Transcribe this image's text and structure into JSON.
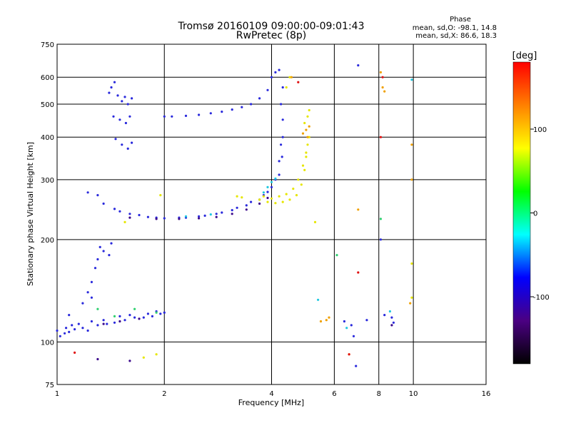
{
  "chart_data": {
    "type": "scatter",
    "title": "Tromsø 20160109 09:00:00-09:01:43",
    "subtitle": "RwPretec (8p)",
    "xlabel": "Frequency [MHz]",
    "ylabel": "Stationary phase Virtual Height [km]",
    "x_scale": "log",
    "y_scale": "log",
    "xlim": [
      1,
      16
    ],
    "ylim": [
      75,
      750
    ],
    "x_ticks": [
      1,
      2,
      4,
      6,
      8,
      10,
      16
    ],
    "y_ticks": [
      75,
      100,
      200,
      300,
      400,
      500,
      600,
      750
    ],
    "grid": true,
    "stats": {
      "heading": "Phase",
      "line1": "mean, sd,O: -98.1, 14.8",
      "line2": "mean, sd,X: 86.6, 18.3"
    },
    "colorbar": {
      "label": "[deg]",
      "range": [
        -180,
        180
      ],
      "ticks": [
        100,
        0,
        -100
      ],
      "colors": [
        "#000000",
        "#4b0082",
        "#0000ff",
        "#00ffff",
        "#00ff00",
        "#ffff00",
        "#ff8000",
        "#ff0000"
      ]
    },
    "series": [
      {
        "color": "#2a2adc",
        "points": [
          [
            1.4,
            540
          ],
          [
            1.42,
            560
          ],
          [
            1.45,
            580
          ],
          [
            1.48,
            530
          ],
          [
            1.52,
            510
          ],
          [
            1.55,
            525
          ],
          [
            1.58,
            500
          ],
          [
            1.62,
            520
          ],
          [
            1.44,
            460
          ],
          [
            1.5,
            450
          ],
          [
            1.56,
            440
          ],
          [
            1.6,
            460
          ],
          [
            1.46,
            395
          ],
          [
            1.52,
            380
          ],
          [
            1.58,
            370
          ],
          [
            1.62,
            385
          ],
          [
            2.0,
            460
          ],
          [
            2.1,
            460
          ],
          [
            2.3,
            462
          ],
          [
            2.5,
            465
          ],
          [
            2.7,
            470
          ],
          [
            2.9,
            475
          ],
          [
            3.1,
            482
          ],
          [
            3.3,
            490
          ],
          [
            3.5,
            500
          ],
          [
            3.7,
            520
          ],
          [
            3.9,
            550
          ],
          [
            4.0,
            600
          ],
          [
            4.1,
            620
          ],
          [
            4.2,
            630
          ],
          [
            4.3,
            560
          ],
          [
            4.25,
            500
          ],
          [
            4.3,
            450
          ],
          [
            4.3,
            400
          ],
          [
            4.28,
            350
          ],
          [
            4.2,
            310
          ],
          [
            4.0,
            285
          ],
          [
            3.8,
            270
          ],
          [
            3.5,
            258
          ],
          [
            3.2,
            248
          ],
          [
            2.9,
            240
          ],
          [
            2.6,
            235
          ],
          [
            2.3,
            232
          ],
          [
            2.0,
            231
          ],
          [
            1.8,
            233
          ],
          [
            1.6,
            238
          ],
          [
            1.45,
            246
          ],
          [
            1.35,
            255
          ],
          [
            1.3,
            270
          ],
          [
            1.5,
            242
          ],
          [
            1.7,
            236
          ],
          [
            1.9,
            232
          ],
          [
            2.2,
            232
          ],
          [
            2.5,
            234
          ],
          [
            2.8,
            238
          ],
          [
            3.1,
            244
          ],
          [
            3.4,
            252
          ],
          [
            3.7,
            262
          ],
          [
            3.9,
            276
          ],
          [
            4.1,
            300
          ],
          [
            4.2,
            340
          ],
          [
            4.25,
            380
          ],
          [
            1.0,
            108
          ],
          [
            1.05,
            106
          ],
          [
            1.08,
            107
          ],
          [
            1.12,
            109
          ],
          [
            1.18,
            110
          ],
          [
            1.22,
            108
          ],
          [
            1.3,
            112
          ],
          [
            1.38,
            113
          ],
          [
            1.45,
            114
          ],
          [
            1.55,
            116
          ],
          [
            1.65,
            118
          ],
          [
            1.75,
            118
          ],
          [
            1.85,
            119
          ],
          [
            1.95,
            121
          ],
          [
            2.0,
            122
          ],
          [
            1.02,
            104
          ],
          [
            1.06,
            110
          ],
          [
            1.1,
            112
          ],
          [
            1.15,
            113
          ],
          [
            1.25,
            115
          ],
          [
            1.35,
            116
          ],
          [
            1.5,
            119
          ],
          [
            1.6,
            120
          ],
          [
            1.8,
            121
          ],
          [
            1.9,
            123
          ],
          [
            1.22,
            140
          ],
          [
            1.25,
            135
          ],
          [
            1.28,
            165
          ],
          [
            1.3,
            175
          ],
          [
            1.32,
            190
          ],
          [
            1.35,
            185
          ],
          [
            1.4,
            180
          ],
          [
            1.42,
            195
          ],
          [
            1.22,
            275
          ],
          [
            1.25,
            150
          ],
          [
            1.18,
            130
          ],
          [
            1.08,
            120
          ],
          [
            7.0,
            650
          ],
          [
            8.3,
            120
          ],
          [
            8.7,
            118
          ],
          [
            8.8,
            114
          ],
          [
            6.4,
            115
          ],
          [
            6.7,
            112
          ],
          [
            6.8,
            104
          ],
          [
            6.9,
            85
          ],
          [
            7.4,
            116
          ],
          [
            8.1,
            200
          ]
        ]
      },
      {
        "color": "#3c0a8c",
        "points": [
          [
            1.6,
            232
          ],
          [
            1.9,
            230
          ],
          [
            2.2,
            230
          ],
          [
            2.5,
            231
          ],
          [
            2.8,
            233
          ],
          [
            3.1,
            238
          ],
          [
            3.4,
            245
          ],
          [
            3.7,
            255
          ],
          [
            3.9,
            265
          ],
          [
            1.35,
            113
          ],
          [
            1.5,
            115
          ],
          [
            1.7,
            117
          ],
          [
            1.3,
            89
          ],
          [
            1.6,
            88
          ],
          [
            8.7,
            112
          ]
        ]
      },
      {
        "color": "#e6e600",
        "points": [
          [
            3.7,
            262
          ],
          [
            3.9,
            258
          ],
          [
            4.1,
            256
          ],
          [
            4.3,
            258
          ],
          [
            4.5,
            262
          ],
          [
            4.7,
            270
          ],
          [
            4.85,
            290
          ],
          [
            4.95,
            320
          ],
          [
            5.0,
            350
          ],
          [
            5.05,
            380
          ],
          [
            5.1,
            400
          ],
          [
            3.8,
            268
          ],
          [
            4.0,
            264
          ],
          [
            4.2,
            268
          ],
          [
            4.4,
            272
          ],
          [
            4.6,
            282
          ],
          [
            4.75,
            300
          ],
          [
            4.9,
            330
          ],
          [
            5.0,
            360
          ],
          [
            4.95,
            440
          ],
          [
            5.05,
            460
          ],
          [
            5.1,
            480
          ],
          [
            3.2,
            268
          ],
          [
            3.3,
            266
          ],
          [
            1.95,
            270
          ],
          [
            1.75,
            90
          ],
          [
            1.9,
            92
          ],
          [
            1.55,
            225
          ],
          [
            4.4,
            560
          ],
          [
            4.5,
            600
          ],
          [
            9.9,
            170
          ],
          [
            9.9,
            135
          ],
          [
            5.3,
            225
          ]
        ]
      },
      {
        "color": "#f0a000",
        "points": [
          [
            4.55,
            600
          ],
          [
            4.9,
            410
          ],
          [
            5.0,
            420
          ],
          [
            5.05,
            400
          ],
          [
            5.1,
            430
          ],
          [
            5.5,
            115
          ],
          [
            5.7,
            116
          ],
          [
            5.8,
            118
          ],
          [
            7.0,
            245
          ],
          [
            8.1,
            620
          ],
          [
            8.2,
            560
          ],
          [
            8.3,
            545
          ],
          [
            9.9,
            380
          ],
          [
            9.9,
            300
          ],
          [
            9.8,
            130
          ],
          [
            6.6,
            92
          ]
        ]
      },
      {
        "color": "#e01010",
        "points": [
          [
            7.0,
            160
          ],
          [
            6.6,
            92
          ],
          [
            8.2,
            600
          ],
          [
            8.1,
            400
          ],
          [
            1.12,
            93
          ],
          [
            4.75,
            580
          ]
        ]
      },
      {
        "color": "#30d070",
        "points": [
          [
            1.9,
            122
          ],
          [
            1.65,
            125
          ],
          [
            1.45,
            119
          ],
          [
            1.3,
            125
          ],
          [
            6.1,
            180
          ],
          [
            8.1,
            230
          ]
        ]
      },
      {
        "color": "#20c8e0",
        "points": [
          [
            3.8,
            275
          ],
          [
            3.9,
            285
          ],
          [
            4.0,
            295
          ],
          [
            4.1,
            302
          ],
          [
            2.3,
            234
          ],
          [
            2.7,
            237
          ],
          [
            5.4,
            133
          ],
          [
            6.5,
            110
          ],
          [
            8.6,
            123
          ],
          [
            9.9,
            590
          ]
        ]
      }
    ]
  }
}
